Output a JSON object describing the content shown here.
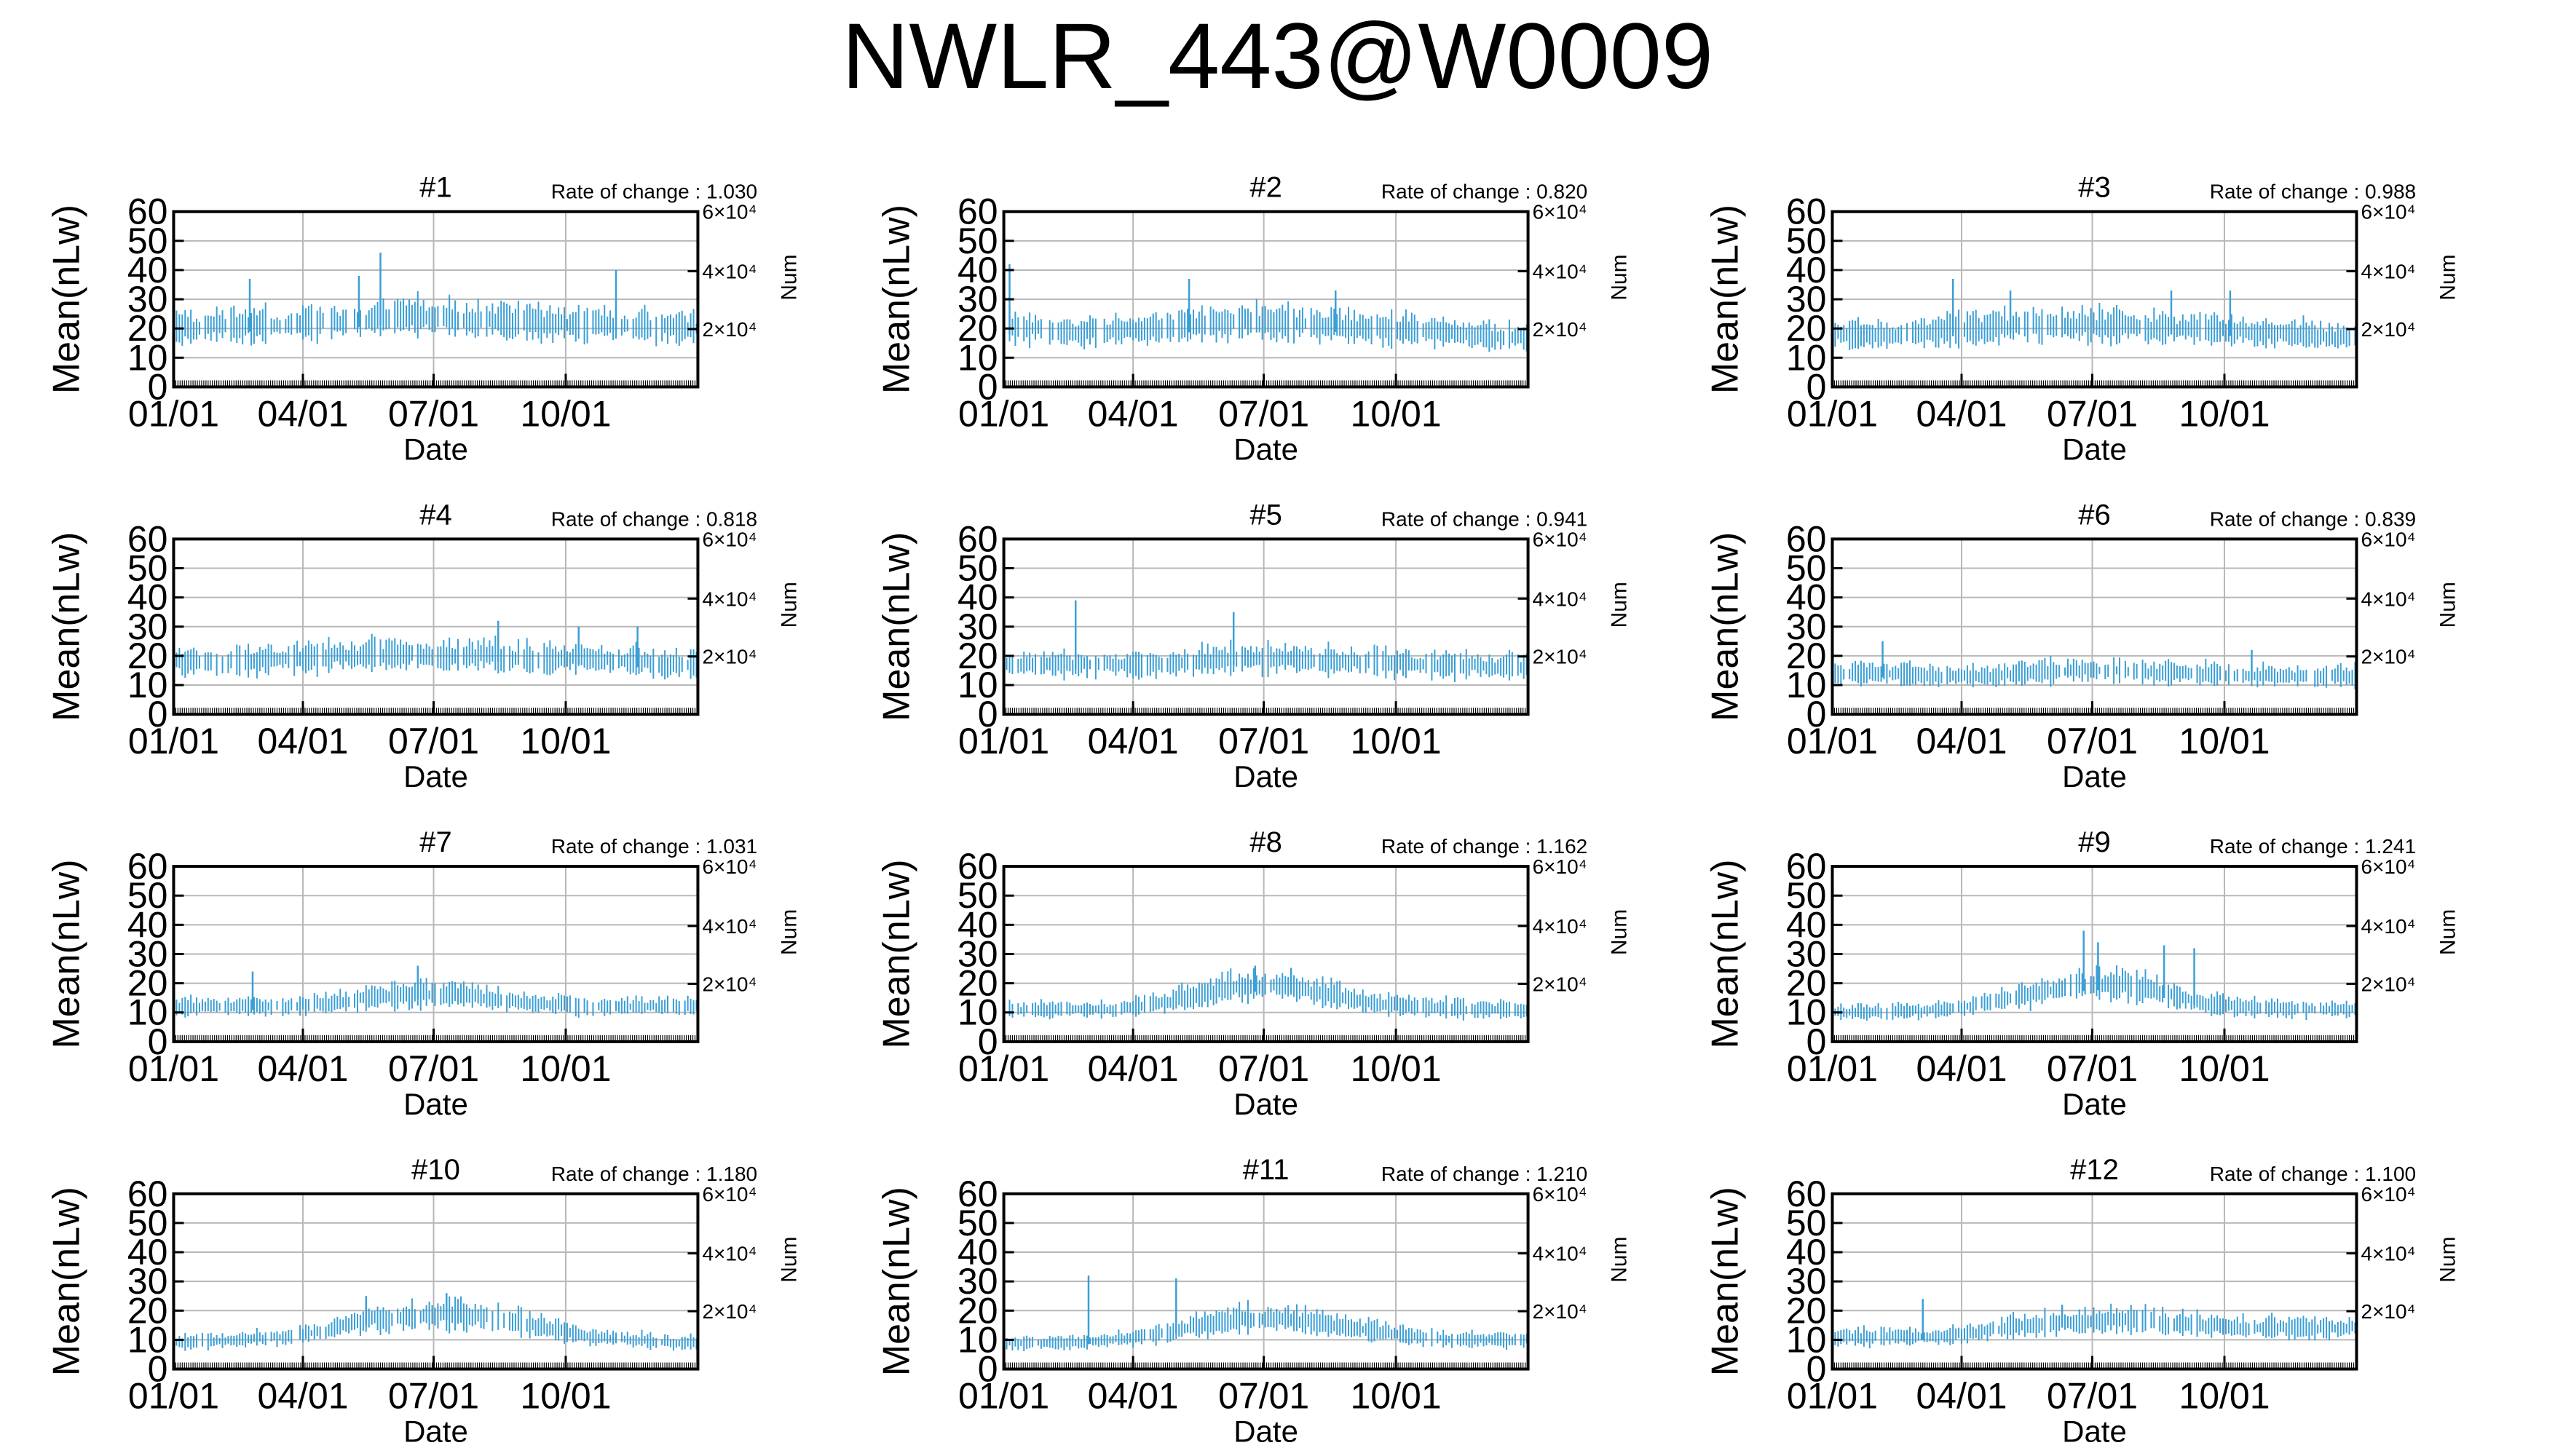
{
  "figure": {
    "title": "NWLR_443@W0009"
  },
  "style": {
    "series_color": "#3a9fd6",
    "grid_color": "#b8b8b8",
    "axis_color": "#000000"
  },
  "chart_data": [
    {
      "type": "line",
      "title": "#1",
      "annotation": "Rate of change : 1.030",
      "xlabel": "Date",
      "ylabel": "Mean(nLw)",
      "y2label": "Num",
      "xlim": [
        "01/01",
        "12/31"
      ],
      "ylim": [
        0,
        60
      ],
      "xticks": [
        "01/01",
        "04/01",
        "07/01",
        "10/01"
      ],
      "yticks": [
        0,
        10,
        20,
        30,
        40,
        50,
        60
      ],
      "y2ticks": [
        "2×10⁴",
        "4×10⁴",
        "6×10⁴"
      ],
      "grid": true,
      "series": [
        {
          "level_by_month": [
            20,
            21,
            21,
            22,
            23,
            24,
            23,
            22,
            22,
            21,
            21,
            20
          ],
          "peaks": [
            [
              "02/23",
              37
            ],
            [
              "05/25",
              46
            ],
            [
              "05/10",
              38
            ],
            [
              "11/05",
              40
            ]
          ]
        }
      ]
    },
    {
      "type": "line",
      "title": "#2",
      "annotation": "Rate of change : 0.820",
      "xlabel": "Date",
      "ylabel": "Mean(nLw)",
      "y2label": "Num",
      "xlim": [
        "01/01",
        "12/31"
      ],
      "ylim": [
        0,
        60
      ],
      "xticks": [
        "01/01",
        "04/01",
        "07/01",
        "10/01"
      ],
      "yticks": [
        0,
        10,
        20,
        30,
        40,
        50,
        60
      ],
      "y2ticks": [
        "2×10⁴",
        "4×10⁴",
        "6×10⁴"
      ],
      "grid": true,
      "series": [
        {
          "level_by_month": [
            20,
            19,
            19,
            20,
            21,
            22,
            22,
            21,
            20,
            19,
            18,
            17
          ],
          "peaks": [
            [
              "01/05",
              42
            ],
            [
              "05/10",
              37
            ],
            [
              "08/20",
              33
            ]
          ]
        }
      ]
    },
    {
      "type": "line",
      "title": "#3",
      "annotation": "Rate of change : 0.988",
      "xlabel": "Date",
      "ylabel": "Mean(nLw)",
      "y2label": "Num",
      "xlim": [
        "01/01",
        "12/31"
      ],
      "ylim": [
        0,
        60
      ],
      "xticks": [
        "01/01",
        "04/01",
        "07/01",
        "10/01"
      ],
      "yticks": [
        0,
        10,
        20,
        30,
        40,
        50,
        60
      ],
      "y2ticks": [
        "2×10⁴",
        "4×10⁴",
        "6×10⁴"
      ],
      "grid": true,
      "series": [
        {
          "level_by_month": [
            18,
            18,
            19,
            20,
            21,
            21,
            21,
            20,
            20,
            19,
            18,
            17
          ],
          "peaks": [
            [
              "03/26",
              37
            ],
            [
              "05/05",
              33
            ],
            [
              "08/25",
              33
            ],
            [
              "10/05",
              33
            ]
          ]
        }
      ]
    },
    {
      "type": "line",
      "title": "#4",
      "annotation": "Rate of change : 0.818",
      "xlabel": "Date",
      "ylabel": "Mean(nLw)",
      "y2label": "Num",
      "xlim": [
        "01/01",
        "12/31"
      ],
      "ylim": [
        0,
        60
      ],
      "xticks": [
        "01/01",
        "04/01",
        "07/01",
        "10/01"
      ],
      "yticks": [
        0,
        10,
        20,
        30,
        40,
        50,
        60
      ],
      "y2ticks": [
        "2×10⁴",
        "4×10⁴",
        "6×10⁴"
      ],
      "grid": true,
      "series": [
        {
          "level_by_month": [
            18,
            18,
            19,
            20,
            20,
            20,
            20,
            20,
            19,
            19,
            18,
            17
          ],
          "peaks": [
            [
              "08/15",
              32
            ],
            [
              "10/10",
              30
            ],
            [
              "11/20",
              30
            ]
          ]
        }
      ]
    },
    {
      "type": "line",
      "title": "#5",
      "annotation": "Rate of change : 0.941",
      "xlabel": "Date",
      "ylabel": "Mean(nLw)",
      "y2label": "Num",
      "xlim": [
        "01/01",
        "12/31"
      ],
      "ylim": [
        0,
        60
      ],
      "xticks": [
        "01/01",
        "04/01",
        "07/01",
        "10/01"
      ],
      "yticks": [
        0,
        10,
        20,
        30,
        40,
        50,
        60
      ],
      "y2ticks": [
        "2×10⁴",
        "4×10⁴",
        "6×10⁴"
      ],
      "grid": true,
      "series": [
        {
          "level_by_month": [
            17,
            17,
            17,
            17,
            18,
            19,
            19,
            18,
            18,
            17,
            17,
            16
          ],
          "peaks": [
            [
              "02/20",
              39
            ],
            [
              "06/10",
              35
            ]
          ]
        }
      ]
    },
    {
      "type": "line",
      "title": "#6",
      "annotation": "Rate of change : 0.839",
      "xlabel": "Date",
      "ylabel": "Mean(nLw)",
      "y2label": "Num",
      "xlim": [
        "01/01",
        "12/31"
      ],
      "ylim": [
        0,
        60
      ],
      "xticks": [
        "01/01",
        "04/01",
        "07/01",
        "10/01"
      ],
      "yticks": [
        0,
        10,
        20,
        30,
        40,
        50,
        60
      ],
      "y2ticks": [
        "2×10⁴",
        "4×10⁴",
        "6×10⁴"
      ],
      "grid": true,
      "series": [
        {
          "level_by_month": [
            14,
            14,
            13,
            13,
            14,
            15,
            15,
            14,
            14,
            13,
            13,
            13
          ],
          "peaks": [
            [
              "02/05",
              25
            ],
            [
              "10/20",
              22
            ]
          ]
        }
      ]
    },
    {
      "type": "line",
      "title": "#7",
      "annotation": "Rate of change : 1.031",
      "xlabel": "Date",
      "ylabel": "Mean(nLw)",
      "y2label": "Num",
      "xlim": [
        "01/01",
        "12/31"
      ],
      "ylim": [
        0,
        60
      ],
      "xticks": [
        "01/01",
        "04/01",
        "07/01",
        "10/01"
      ],
      "yticks": [
        0,
        10,
        20,
        30,
        40,
        50,
        60
      ],
      "y2ticks": [
        "2×10⁴",
        "4×10⁴",
        "6×10⁴"
      ],
      "grid": true,
      "series": [
        {
          "level_by_month": [
            12,
            12,
            12,
            13,
            15,
            16,
            16,
            14,
            13,
            12,
            12,
            12
          ],
          "peaks": [
            [
              "02/25",
              24
            ],
            [
              "06/20",
              26
            ]
          ]
        }
      ]
    },
    {
      "type": "line",
      "title": "#8",
      "annotation": "Rate of change : 1.162",
      "xlabel": "Date",
      "ylabel": "Mean(nLw)",
      "y2label": "Num",
      "xlim": [
        "01/01",
        "12/31"
      ],
      "ylim": [
        0,
        60
      ],
      "xticks": [
        "01/01",
        "04/01",
        "07/01",
        "10/01"
      ],
      "yticks": [
        0,
        10,
        20,
        30,
        40,
        50,
        60
      ],
      "y2ticks": [
        "2×10⁴",
        "4×10⁴",
        "6×10⁴"
      ],
      "grid": true,
      "series": [
        {
          "level_by_month": [
            11,
            11,
            11,
            13,
            16,
            19,
            19,
            16,
            13,
            12,
            11,
            11
          ],
          "peaks": [
            [
              "06/25",
              26
            ],
            [
              "07/20",
              25
            ]
          ]
        }
      ]
    },
    {
      "type": "line",
      "title": "#9",
      "annotation": "Rate of change : 1.241",
      "xlabel": "Date",
      "ylabel": "Mean(nLw)",
      "y2label": "Num",
      "xlim": [
        "01/01",
        "12/31"
      ],
      "ylim": [
        0,
        60
      ],
      "xticks": [
        "01/01",
        "04/01",
        "07/01",
        "10/01"
      ],
      "yticks": [
        0,
        10,
        20,
        30,
        40,
        50,
        60
      ],
      "y2ticks": [
        "2×10⁴",
        "4×10⁴",
        "6×10⁴"
      ],
      "grid": true,
      "series": [
        {
          "level_by_month": [
            10,
            10,
            11,
            13,
            16,
            19,
            20,
            17,
            13,
            12,
            11,
            11
          ],
          "peaks": [
            [
              "06/25",
              38
            ],
            [
              "07/05",
              34
            ],
            [
              "08/20",
              33
            ],
            [
              "09/10",
              32
            ]
          ]
        }
      ]
    },
    {
      "type": "line",
      "title": "#10",
      "annotation": "Rate of change : 1.180",
      "xlabel": "Date",
      "ylabel": "Mean(nLw)",
      "y2label": "Num",
      "xlim": [
        "01/01",
        "12/31"
      ],
      "ylim": [
        0,
        60
      ],
      "xticks": [
        "01/01",
        "04/01",
        "07/01",
        "10/01"
      ],
      "yticks": [
        0,
        10,
        20,
        30,
        40,
        50,
        60
      ],
      "y2ticks": [
        "2×10⁴",
        "4×10⁴",
        "6×10⁴"
      ],
      "grid": true,
      "series": [
        {
          "level_by_month": [
            9,
            10,
            11,
            13,
            17,
            18,
            19,
            17,
            14,
            11,
            10,
            9
          ],
          "peaks": [
            [
              "05/15",
              25
            ],
            [
              "07/10",
              26
            ]
          ]
        }
      ]
    },
    {
      "type": "line",
      "title": "#11",
      "annotation": "Rate of change : 1.210",
      "xlabel": "Date",
      "ylabel": "Mean(nLw)",
      "y2label": "Num",
      "xlim": [
        "01/01",
        "12/31"
      ],
      "ylim": [
        0,
        60
      ],
      "xticks": [
        "01/01",
        "04/01",
        "07/01",
        "10/01"
      ],
      "yticks": [
        0,
        10,
        20,
        30,
        40,
        50,
        60
      ],
      "y2ticks": [
        "2×10⁴",
        "4×10⁴",
        "6×10⁴"
      ],
      "grid": true,
      "series": [
        {
          "level_by_month": [
            9,
            9,
            10,
            12,
            15,
            17,
            17,
            15,
            13,
            11,
            10,
            10
          ],
          "peaks": [
            [
              "03/01",
              32
            ],
            [
              "05/01",
              31
            ]
          ]
        }
      ]
    },
    {
      "type": "line",
      "title": "#12",
      "annotation": "Rate of change : 1.100",
      "xlabel": "Date",
      "ylabel": "Mean(nLw)",
      "y2label": "Num",
      "xlim": [
        "01/01",
        "12/31"
      ],
      "ylim": [
        0,
        60
      ],
      "xticks": [
        "01/01",
        "04/01",
        "07/01",
        "10/01"
      ],
      "yticks": [
        0,
        10,
        20,
        30,
        40,
        50,
        60
      ],
      "y2ticks": [
        "2×10⁴",
        "4×10⁴",
        "6×10⁴"
      ],
      "grid": true,
      "series": [
        {
          "level_by_month": [
            11,
            11,
            11,
            13,
            15,
            16,
            17,
            16,
            15,
            14,
            14,
            14
          ],
          "peaks": [
            [
              "03/05",
              24
            ],
            [
              "06/10",
              22
            ]
          ]
        }
      ]
    }
  ]
}
